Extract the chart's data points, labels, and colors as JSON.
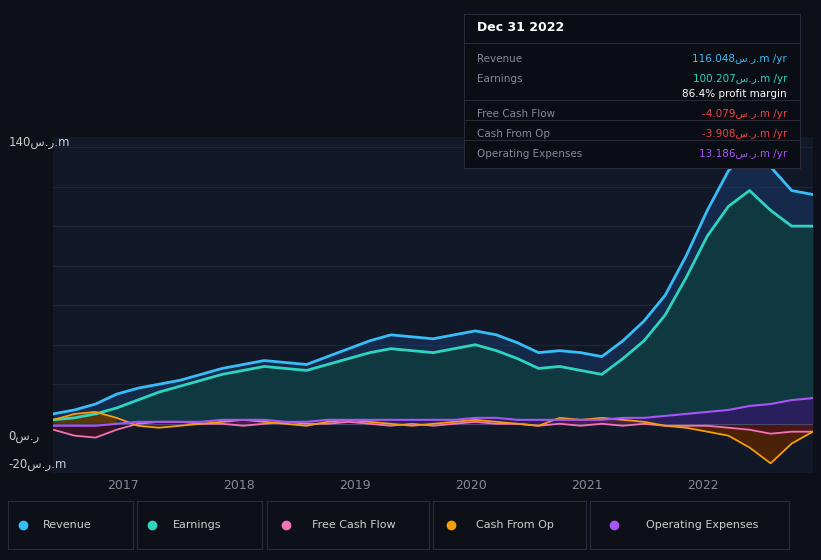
{
  "bg_color": "#0d1117",
  "panel_bg": "#0d1117",
  "chart_inner_bg": "#111827",
  "title": "Dec 31 2022",
  "ylabel_top": "140س.ر.m",
  "ylabel_zero": "0س.ر",
  "ylabel_bottom": "-20س.ر.m",
  "x_ticks": [
    "2017",
    "2018",
    "2019",
    "2020",
    "2021",
    "2022"
  ],
  "series": {
    "revenue": {
      "color": "#38bdf8",
      "fill_color": "#1e3a5f",
      "label": "Revenue",
      "data": [
        5,
        7,
        10,
        15,
        18,
        20,
        22,
        25,
        28,
        30,
        32,
        31,
        30,
        34,
        38,
        42,
        45,
        44,
        43,
        45,
        47,
        45,
        41,
        36,
        37,
        36,
        34,
        42,
        52,
        65,
        85,
        108,
        128,
        138,
        130,
        118,
        116
      ]
    },
    "earnings": {
      "color": "#2dd4bf",
      "fill_color": "#0d3d3d",
      "label": "Earnings",
      "data": [
        2,
        3,
        5,
        8,
        12,
        16,
        19,
        22,
        25,
        27,
        29,
        28,
        27,
        30,
        33,
        36,
        38,
        37,
        36,
        38,
        40,
        37,
        33,
        28,
        29,
        27,
        25,
        33,
        42,
        55,
        74,
        95,
        110,
        118,
        108,
        100,
        100
      ]
    },
    "free_cash_flow": {
      "color": "#f472b6",
      "fill_color": "#4a1030",
      "label": "Free Cash Flow",
      "data": [
        -3,
        -6,
        -7,
        -3,
        0,
        1,
        1,
        0,
        0,
        -1,
        0,
        1,
        0,
        0,
        1,
        0,
        -1,
        0,
        -1,
        0,
        1,
        0,
        0,
        -1,
        0,
        -1,
        0,
        -1,
        0,
        -1,
        -1,
        -1,
        -2,
        -3,
        -5,
        -4,
        -4
      ]
    },
    "cash_from_op": {
      "color": "#f59e0b",
      "fill_color": "#5a3000",
      "label": "Cash From Op",
      "data": [
        2,
        5,
        6,
        3,
        -1,
        -2,
        -1,
        0,
        1,
        2,
        1,
        0,
        -1,
        1,
        2,
        1,
        0,
        -1,
        0,
        1,
        2,
        1,
        0,
        -1,
        3,
        2,
        3,
        2,
        1,
        -1,
        -2,
        -4,
        -6,
        -12,
        -20,
        -10,
        -4
      ]
    },
    "operating_expenses": {
      "color": "#a855f7",
      "fill_color": "#3b1070",
      "label": "Operating Expenses",
      "data": [
        -1,
        -1,
        -1,
        0,
        1,
        1,
        1,
        1,
        2,
        2,
        2,
        1,
        1,
        2,
        2,
        2,
        2,
        2,
        2,
        2,
        3,
        3,
        2,
        2,
        2,
        2,
        2,
        3,
        3,
        4,
        5,
        6,
        7,
        9,
        10,
        12,
        13
      ]
    }
  },
  "legend": [
    {
      "label": "Revenue",
      "color": "#38bdf8"
    },
    {
      "label": "Earnings",
      "color": "#2dd4bf"
    },
    {
      "label": "Free Cash Flow",
      "color": "#f472b6"
    },
    {
      "label": "Cash From Op",
      "color": "#f59e0b"
    },
    {
      "label": "Operating Expenses",
      "color": "#a855f7"
    }
  ],
  "tooltip": {
    "title": "Dec 31 2022",
    "rows": [
      {
        "label": "Revenue",
        "value": "116.048س.ر.m /yr",
        "color": "#38bdf8",
        "separator_above": false
      },
      {
        "label": "Earnings",
        "value": "100.207س.ر.m /yr",
        "color": "#2dd4bf",
        "separator_above": false
      },
      {
        "label": "",
        "value": "86.4% profit margin",
        "color": "#ffffff",
        "separator_above": false
      },
      {
        "label": "Free Cash Flow",
        "value": "-4.079س.ر.m /yr",
        "color": "#ef4444",
        "separator_above": true
      },
      {
        "label": "Cash From Op",
        "value": "-3.908س.ر.m /yr",
        "color": "#ef4444",
        "separator_above": true
      },
      {
        "label": "Operating Expenses",
        "value": "13.186س.ر.m /yr",
        "color": "#a855f7",
        "separator_above": true
      }
    ]
  }
}
